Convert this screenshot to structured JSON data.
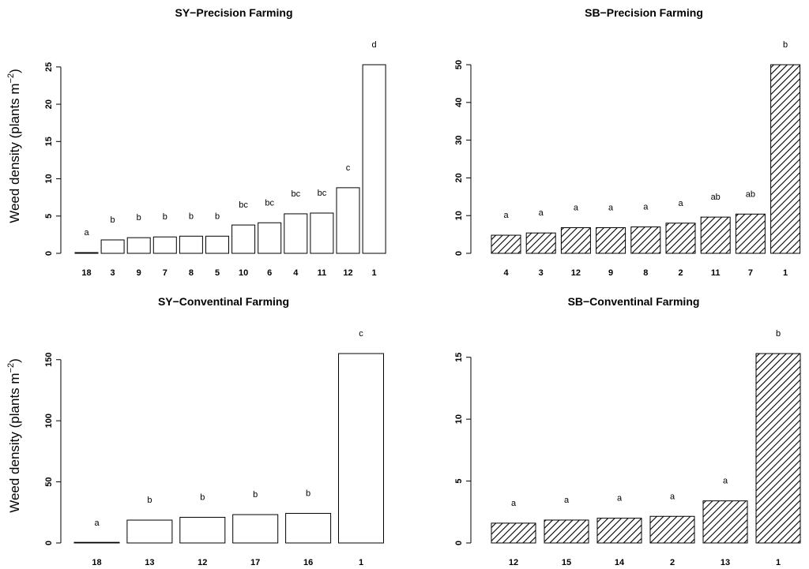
{
  "chart_data": [
    {
      "type": "bar",
      "title": "SY−Precision Farming",
      "ylabel": "Weed density (plants m⁻²)",
      "ylabel_parts": {
        "main": "Weed density",
        "paren": "(plants m",
        "sup": "−2",
        "close": ")"
      },
      "xlabel": "",
      "categories": [
        "18",
        "3",
        "9",
        "7",
        "8",
        "5",
        "10",
        "6",
        "4",
        "11",
        "12",
        "1"
      ],
      "values": [
        0.1,
        1.8,
        2.1,
        2.2,
        2.3,
        2.3,
        3.8,
        4.1,
        5.3,
        5.4,
        8.8,
        25.3
      ],
      "letters": [
        "a",
        "b",
        "b",
        "b",
        "b",
        "b",
        "bc",
        "bc",
        "bc",
        "bc",
        "c",
        "d"
      ],
      "ylim": [
        0,
        25.3
      ],
      "yticks": [
        0,
        5,
        10,
        15,
        20,
        25
      ],
      "fill": "plain"
    },
    {
      "type": "bar",
      "title": "SB−Precision Farming",
      "ylabel": "",
      "xlabel": "",
      "categories": [
        "4",
        "3",
        "12",
        "9",
        "8",
        "2",
        "11",
        "7",
        "1"
      ],
      "values": [
        4.8,
        5.4,
        6.8,
        6.8,
        7.0,
        8.0,
        9.6,
        10.4,
        50.0
      ],
      "letters": [
        "a",
        "a",
        "a",
        "a",
        "a",
        "a",
        "ab",
        "ab",
        "b"
      ],
      "ylim": [
        0,
        50
      ],
      "yticks": [
        0,
        10,
        20,
        30,
        40,
        50
      ],
      "fill": "hatched"
    },
    {
      "type": "bar",
      "title": "SY−Conventinal Farming",
      "ylabel": "Weed density (plants m⁻²)",
      "ylabel_parts": {
        "main": "Weed density",
        "paren": "(plants m",
        "sup": "−2",
        "close": ")"
      },
      "xlabel": "",
      "categories": [
        "18",
        "13",
        "12",
        "17",
        "16",
        "1"
      ],
      "values": [
        0.1,
        18.7,
        21.0,
        23.2,
        24.2,
        155.0
      ],
      "letters": [
        "a",
        "b",
        "b",
        "b",
        "b",
        "c"
      ],
      "ylim": [
        0,
        155
      ],
      "yticks": [
        0,
        50,
        100,
        150
      ],
      "fill": "plain"
    },
    {
      "type": "bar",
      "title": "SB−Conventinal Farming",
      "ylabel": "",
      "xlabel": "",
      "categories": [
        "12",
        "15",
        "14",
        "2",
        "13",
        "1"
      ],
      "values": [
        1.6,
        1.85,
        2.0,
        2.15,
        3.4,
        15.3
      ],
      "letters": [
        "a",
        "a",
        "a",
        "a",
        "a",
        "b"
      ],
      "ylim": [
        0,
        15.3
      ],
      "yticks": [
        0,
        5,
        10,
        15
      ],
      "fill": "hatched"
    }
  ]
}
